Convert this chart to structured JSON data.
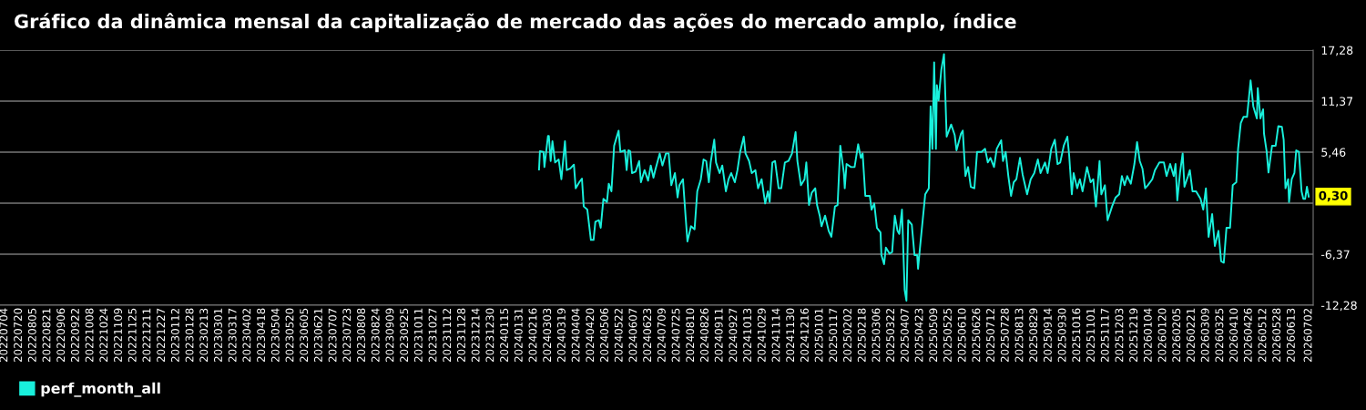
{
  "chart_data": {
    "type": "line",
    "title": "Gráfico da dinâmica mensal da capitalização de mercado das ações do mercado amplo, índice",
    "x": [
      "2024-02-22",
      "2024-02-23",
      "2024-02-27",
      "2024-02-28",
      "2024-03-03",
      "2024-03-04",
      "2024-03-06",
      "2024-03-08",
      "2024-03-11",
      "2024-03-15",
      "2024-03-18",
      "2024-03-22",
      "2024-03-24",
      "2024-03-28",
      "2024-04-01",
      "2024-04-03",
      "2024-04-07",
      "2024-04-10",
      "2024-04-12",
      "2024-04-16",
      "2024-04-20",
      "2024-04-23",
      "2024-04-25",
      "2024-04-29",
      "2024-05-01",
      "2024-05-04",
      "2024-05-08",
      "2024-05-10",
      "2024-05-13",
      "2024-05-16",
      "2024-05-21",
      "2024-05-23",
      "2024-05-28",
      "2024-05-30",
      "2024-06-01",
      "2024-06-03",
      "2024-06-05",
      "2024-06-09",
      "2024-06-13",
      "2024-06-15",
      "2024-06-19",
      "2024-06-23",
      "2024-06-26",
      "2024-06-29",
      "2024-07-01",
      "2024-07-06",
      "2024-07-09",
      "2024-07-13",
      "2024-07-16",
      "2024-07-19",
      "2024-07-23",
      "2024-07-26",
      "2024-07-28",
      "2024-08-01",
      "2024-08-04",
      "2024-08-06",
      "2024-08-10",
      "2024-08-14",
      "2024-08-17",
      "2024-08-21",
      "2024-08-24",
      "2024-08-27",
      "2024-08-30",
      "2024-09-01",
      "2024-09-05",
      "2024-09-07",
      "2024-09-11",
      "2024-09-14",
      "2024-09-18",
      "2024-09-21",
      "2024-09-24",
      "2024-09-28",
      "2024-10-01",
      "2024-10-04",
      "2024-10-08",
      "2024-10-10",
      "2024-10-14",
      "2024-10-17",
      "2024-10-21",
      "2024-10-24",
      "2024-10-28",
      "2024-11-01",
      "2024-11-04",
      "2024-11-06",
      "2024-11-09",
      "2024-11-12",
      "2024-11-16",
      "2024-11-19",
      "2024-11-23",
      "2024-11-27",
      "2024-12-01",
      "2024-12-05",
      "2024-12-07",
      "2024-12-11",
      "2024-12-15",
      "2024-12-17",
      "2024-12-20",
      "2024-12-23",
      "2024-12-27",
      "2024-12-29",
      "2025-01-01",
      "2025-01-03",
      "2025-01-07",
      "2025-01-11",
      "2025-01-14",
      "2025-01-18",
      "2025-01-21",
      "2025-01-24",
      "2025-01-28",
      "2025-01-29",
      "2025-01-31",
      "2025-02-05",
      "2025-02-09",
      "2025-02-13",
      "2025-02-16",
      "2025-02-18",
      "2025-02-21",
      "2025-02-26",
      "2025-02-28",
      "2025-03-03",
      "2025-03-06",
      "2025-03-10",
      "2025-03-11",
      "2025-03-14",
      "2025-03-16",
      "2025-03-20",
      "2025-03-23",
      "2025-03-26",
      "2025-03-29",
      "2025-03-31",
      "2025-04-03",
      "2025-04-06",
      "2025-04-08",
      "2025-04-10",
      "2025-04-14",
      "2025-04-17",
      "2025-04-20",
      "2025-04-21",
      "2025-04-23",
      "2025-04-26",
      "2025-04-29",
      "2025-05-03",
      "2025-05-05",
      "2025-05-07",
      "2025-05-09",
      "2025-05-11",
      "2025-05-12",
      "2025-05-14",
      "2025-05-17",
      "2025-05-20",
      "2025-05-23",
      "2025-05-28",
      "2025-06-01",
      "2025-06-03",
      "2025-06-08",
      "2025-06-10",
      "2025-06-13",
      "2025-06-16",
      "2025-06-19",
      "2025-06-23",
      "2025-06-26",
      "2025-07-01",
      "2025-07-05",
      "2025-07-08",
      "2025-07-11",
      "2025-07-15",
      "2025-07-18",
      "2025-07-23",
      "2025-07-25",
      "2025-07-28",
      "2025-07-31",
      "2025-08-03",
      "2025-08-06",
      "2025-08-09",
      "2025-08-13",
      "2025-08-16",
      "2025-08-21",
      "2025-08-25",
      "2025-08-29",
      "2025-09-02",
      "2025-09-05",
      "2025-09-10",
      "2025-09-13",
      "2025-09-17",
      "2025-09-21",
      "2025-09-24",
      "2025-09-27",
      "2025-10-01",
      "2025-10-05",
      "2025-10-07",
      "2025-10-10",
      "2025-10-12",
      "2025-10-16",
      "2025-10-19",
      "2025-10-22",
      "2025-10-27",
      "2025-10-31",
      "2025-11-03",
      "2025-11-06",
      "2025-11-10",
      "2025-11-12",
      "2025-11-16",
      "2025-11-19",
      "2025-11-24",
      "2025-11-28",
      "2025-12-02",
      "2025-12-05",
      "2025-12-08",
      "2025-12-11",
      "2025-12-15",
      "2025-12-19",
      "2025-12-22",
      "2025-12-25",
      "2025-12-28",
      "2025-12-31",
      "2026-01-03",
      "2026-01-08",
      "2026-01-11",
      "2026-01-16",
      "2026-01-21",
      "2026-01-24",
      "2026-01-28",
      "2026-02-01",
      "2026-02-03",
      "2026-02-05",
      "2026-02-08",
      "2026-02-11",
      "2026-02-13",
      "2026-02-17",
      "2026-02-19",
      "2026-02-22",
      "2026-02-26",
      "2026-03-03",
      "2026-03-06",
      "2026-03-09",
      "2026-03-12",
      "2026-03-16",
      "2026-03-19",
      "2026-03-23",
      "2026-03-26",
      "2026-03-29",
      "2026-04-01",
      "2026-04-05",
      "2026-04-08",
      "2026-04-12",
      "2026-04-14",
      "2026-04-17",
      "2026-04-20",
      "2026-04-24",
      "2026-04-28",
      "2026-05-01",
      "2026-05-05",
      "2026-05-06",
      "2026-05-09",
      "2026-05-12",
      "2026-05-13",
      "2026-05-16",
      "2026-05-18",
      "2026-05-22",
      "2026-05-26",
      "2026-05-29",
      "2026-06-02",
      "2026-06-04",
      "2026-06-06",
      "2026-06-09",
      "2026-06-10",
      "2026-06-13",
      "2026-06-16",
      "2026-06-18",
      "2026-06-21",
      "2026-06-24",
      "2026-06-26",
      "2026-06-28",
      "2026-06-30",
      "2026-07-02"
    ],
    "series": [
      {
        "name": "perf_month_all",
        "color": "#19f0dc",
        "values": [
          3.45,
          5.56,
          5.49,
          3.73,
          7.32,
          7.32,
          4.43,
          6.72,
          4.26,
          4.61,
          2.32,
          6.72,
          3.38,
          3.56,
          4.01,
          1.27,
          1.97,
          2.39,
          -0.84,
          -1.2,
          -4.71,
          -4.71,
          -2.6,
          -2.43,
          -3.31,
          0.04,
          -0.32,
          1.8,
          0.92,
          6.2,
          7.95,
          5.49,
          5.67,
          3.38,
          5.67,
          5.56,
          3.03,
          3.2,
          4.43,
          1.97,
          3.38,
          2.15,
          3.91,
          2.5,
          3.38,
          5.31,
          3.91,
          5.31,
          5.31,
          1.62,
          3.03,
          0.21,
          1.62,
          2.32,
          -2.07,
          -4.89,
          -3.13,
          -3.48,
          0.92,
          2.32,
          4.61,
          4.43,
          1.97,
          4.26,
          6.9,
          4.26,
          3.03,
          3.91,
          0.92,
          2.32,
          3.03,
          1.97,
          3.38,
          5.49,
          7.25,
          5.31,
          4.43,
          3.03,
          3.38,
          1.27,
          2.32,
          -0.49,
          0.92,
          -0.32,
          4.26,
          4.43,
          1.27,
          1.27,
          4.26,
          4.43,
          5.31,
          7.78,
          4.43,
          1.62,
          2.32,
          4.26,
          -0.67,
          0.74,
          1.27,
          -0.67,
          -1.9,
          -3.13,
          -1.9,
          -3.66,
          -4.36,
          -0.84,
          -0.67,
          6.2,
          3.03,
          1.27,
          4.08,
          3.73,
          3.73,
          6.37,
          4.79,
          5.31,
          0.39,
          0.39,
          -1.2,
          -0.49,
          -3.31,
          -3.84,
          -6.47,
          -7.53,
          -5.59,
          -6.3,
          -6.12,
          -1.9,
          -3.66,
          -4.01,
          -1.2,
          -10.52,
          -11.75,
          -2.43,
          -2.95,
          -6.47,
          -6.47,
          -8.06,
          -5.77,
          -2.6,
          0.57,
          1.27,
          10.77,
          5.84,
          15.87,
          5.84,
          13.23,
          11.47,
          14.99,
          16.82,
          7.25,
          8.66,
          7.43,
          5.67,
          7.6,
          7.95,
          2.68,
          3.73,
          1.44,
          1.27,
          5.49,
          5.49,
          5.84,
          4.26,
          4.79,
          3.73,
          5.84,
          6.83,
          4.43,
          5.49,
          2.68,
          0.39,
          1.97,
          2.32,
          4.79,
          2.85,
          0.57,
          2.32,
          3.03,
          4.61,
          3.03,
          4.26,
          3.03,
          5.84,
          6.9,
          4.08,
          4.26,
          6.2,
          7.25,
          5.14,
          0.57,
          3.03,
          1.27,
          2.32,
          0.92,
          3.73,
          1.97,
          2.32,
          -0.84,
          4.43,
          0.57,
          1.62,
          -2.43,
          -0.84,
          0.21,
          0.57,
          2.68,
          1.62,
          2.68,
          1.8,
          4.08,
          6.62,
          4.43,
          3.56,
          1.27,
          1.62,
          2.32,
          3.38,
          4.26,
          4.26,
          2.68,
          4.08,
          2.68,
          4.08,
          -0.14,
          3.03,
          5.31,
          1.44,
          2.68,
          3.38,
          0.92,
          0.92,
          0.04,
          -1.2,
          1.27,
          -4.36,
          -1.72,
          -5.42,
          -3.66,
          -7.18,
          -7.35,
          -3.31,
          -3.31,
          1.62,
          1.97,
          5.84,
          8.83,
          9.54,
          9.54,
          13.76,
          10.77,
          9.36,
          12.88,
          9.36,
          10.42,
          7.6,
          5.49,
          3.1,
          6.2,
          6.2,
          8.48,
          8.38,
          6.9,
          1.27,
          2.32,
          -0.32,
          2.32,
          3.03,
          5.67,
          5.49,
          0.92,
          0.04,
          0.04,
          1.44,
          0.3
        ]
      }
    ],
    "xlim": [
      "2022-06-29",
      "2026-07-07"
    ],
    "xticks": [
      {
        "value": "2022-07-04",
        "label": "20220704"
      },
      {
        "value": "2022-07-20",
        "label": "20220720"
      },
      {
        "value": "2022-08-05",
        "label": "20220805"
      },
      {
        "value": "2022-08-21",
        "label": "20220821"
      },
      {
        "value": "2022-09-06",
        "label": "20220906"
      },
      {
        "value": "2022-09-22",
        "label": "20220922"
      },
      {
        "value": "2022-10-08",
        "label": "20221008"
      },
      {
        "value": "2022-10-24",
        "label": "20221024"
      },
      {
        "value": "2022-11-09",
        "label": "20221109"
      },
      {
        "value": "2022-11-25",
        "label": "20221125"
      },
      {
        "value": "2022-12-11",
        "label": "20221211"
      },
      {
        "value": "2022-12-27",
        "label": "20221227"
      },
      {
        "value": "2023-01-12",
        "label": "20230112"
      },
      {
        "value": "2023-01-28",
        "label": "20230128"
      },
      {
        "value": "2023-02-13",
        "label": "20230213"
      },
      {
        "value": "2023-03-01",
        "label": "20230301"
      },
      {
        "value": "2023-03-17",
        "label": "20230317"
      },
      {
        "value": "2023-04-02",
        "label": "20230402"
      },
      {
        "value": "2023-04-18",
        "label": "20230418"
      },
      {
        "value": "2023-05-04",
        "label": "20230504"
      },
      {
        "value": "2023-05-20",
        "label": "20230520"
      },
      {
        "value": "2023-06-05",
        "label": "20230605"
      },
      {
        "value": "2023-06-21",
        "label": "20230621"
      },
      {
        "value": "2023-07-07",
        "label": "20230707"
      },
      {
        "value": "2023-07-23",
        "label": "20230723"
      },
      {
        "value": "2023-08-08",
        "label": "20230808"
      },
      {
        "value": "2023-08-24",
        "label": "20230824"
      },
      {
        "value": "2023-09-09",
        "label": "20230909"
      },
      {
        "value": "2023-09-25",
        "label": "20230925"
      },
      {
        "value": "2023-10-11",
        "label": "20231011"
      },
      {
        "value": "2023-10-27",
        "label": "20231027"
      },
      {
        "value": "2023-11-12",
        "label": "20231112"
      },
      {
        "value": "2023-11-28",
        "label": "20231128"
      },
      {
        "value": "2023-12-14",
        "label": "20231214"
      },
      {
        "value": "2023-12-30",
        "label": "20231230"
      },
      {
        "value": "2024-01-15",
        "label": "20240115"
      },
      {
        "value": "2024-01-31",
        "label": "20240131"
      },
      {
        "value": "2024-02-16",
        "label": "20240216"
      },
      {
        "value": "2024-03-03",
        "label": "20240303"
      },
      {
        "value": "2024-03-19",
        "label": "20240319"
      },
      {
        "value": "2024-04-04",
        "label": "20240404"
      },
      {
        "value": "2024-04-20",
        "label": "20240420"
      },
      {
        "value": "2024-05-06",
        "label": "20240506"
      },
      {
        "value": "2024-05-22",
        "label": "20240522"
      },
      {
        "value": "2024-06-07",
        "label": "20240607"
      },
      {
        "value": "2024-06-23",
        "label": "20240623"
      },
      {
        "value": "2024-07-09",
        "label": "20240709"
      },
      {
        "value": "2024-07-25",
        "label": "20240725"
      },
      {
        "value": "2024-08-10",
        "label": "20240810"
      },
      {
        "value": "2024-08-26",
        "label": "20240826"
      },
      {
        "value": "2024-09-11",
        "label": "20240911"
      },
      {
        "value": "2024-09-27",
        "label": "20240927"
      },
      {
        "value": "2024-10-13",
        "label": "20241013"
      },
      {
        "value": "2024-10-29",
        "label": "20241029"
      },
      {
        "value": "2024-11-14",
        "label": "20241114"
      },
      {
        "value": "2024-11-30",
        "label": "20241130"
      },
      {
        "value": "2024-12-16",
        "label": "20241216"
      },
      {
        "value": "2025-01-01",
        "label": "20250101"
      },
      {
        "value": "2025-01-17",
        "label": "20250117"
      },
      {
        "value": "2025-02-02",
        "label": "20250202"
      },
      {
        "value": "2025-02-18",
        "label": "20250218"
      },
      {
        "value": "2025-03-06",
        "label": "20250306"
      },
      {
        "value": "2025-03-22",
        "label": "20250322"
      },
      {
        "value": "2025-04-07",
        "label": "20250407"
      },
      {
        "value": "2025-04-23",
        "label": "20250423"
      },
      {
        "value": "2025-05-09",
        "label": "20250509"
      },
      {
        "value": "2025-05-25",
        "label": "20250525"
      },
      {
        "value": "2025-06-10",
        "label": "20250610"
      },
      {
        "value": "2025-06-26",
        "label": "20250626"
      },
      {
        "value": "2025-07-12",
        "label": "20250712"
      },
      {
        "value": "2025-07-28",
        "label": "20250728"
      },
      {
        "value": "2025-08-13",
        "label": "20250813"
      },
      {
        "value": "2025-08-29",
        "label": "20250829"
      },
      {
        "value": "2025-09-14",
        "label": "20250914"
      },
      {
        "value": "2025-09-30",
        "label": "20250930"
      },
      {
        "value": "2025-10-16",
        "label": "20251016"
      },
      {
        "value": "2025-11-01",
        "label": "20251101"
      },
      {
        "value": "2025-11-17",
        "label": "20251117"
      },
      {
        "value": "2025-12-03",
        "label": "20251203"
      },
      {
        "value": "2025-12-19",
        "label": "20251219"
      },
      {
        "value": "2026-01-04",
        "label": "20260104"
      },
      {
        "value": "2026-01-20",
        "label": "20260120"
      },
      {
        "value": "2026-02-05",
        "label": "20260205"
      },
      {
        "value": "2026-02-21",
        "label": "20260221"
      },
      {
        "value": "2026-03-09",
        "label": "20260309"
      },
      {
        "value": "2026-03-25",
        "label": "20260325"
      },
      {
        "value": "2026-04-10",
        "label": "20260410"
      },
      {
        "value": "2026-04-26",
        "label": "20260426"
      },
      {
        "value": "2026-05-12",
        "label": "20260512"
      },
      {
        "value": "2026-05-28",
        "label": "20260528"
      },
      {
        "value": "2026-06-13",
        "label": "20260613"
      },
      {
        "value": "2026-07-02",
        "label": "20260702"
      }
    ],
    "ylim": [
      -12.28,
      17.28
    ],
    "yticks": [
      {
        "value": -12.28,
        "label": "-12,28"
      },
      {
        "value": -6.37,
        "label": "-6,37"
      },
      {
        "value": -0.46,
        "label": null
      },
      {
        "value": 5.46,
        "label": "5,46"
      },
      {
        "value": 11.37,
        "label": "11,37"
      },
      {
        "value": 17.28,
        "label": "17,28"
      }
    ],
    "annotations": [
      {
        "text": "0,30",
        "x": "2026-07-02",
        "y": 0.3
      }
    ],
    "grid": "y",
    "legend": "bottom left",
    "marker": "none",
    "line_style": "solid"
  }
}
